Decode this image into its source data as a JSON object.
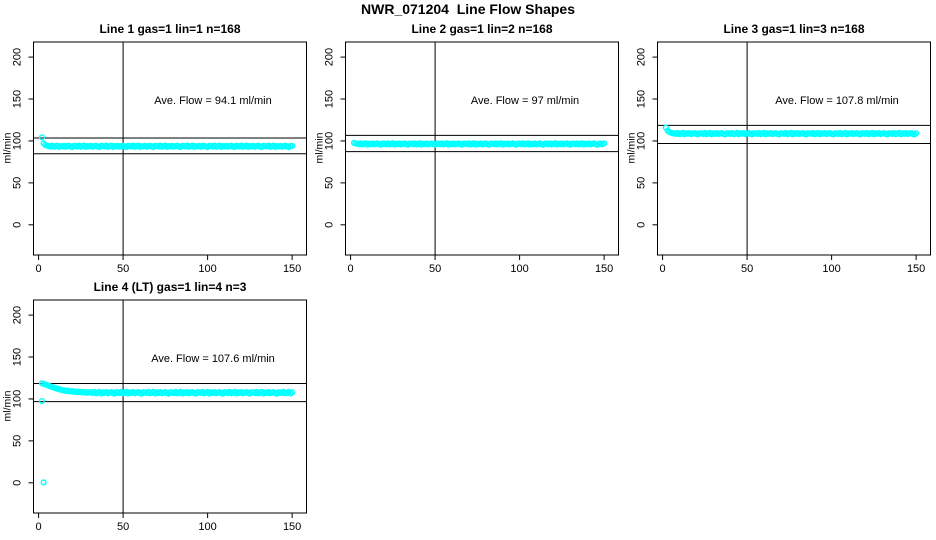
{
  "page_title": "NWR_071204  Line Flow Shapes",
  "colors": {
    "points": "#00FFFF",
    "axis": "#000000",
    "text": "#000000",
    "background": "#FFFFFF"
  },
  "axes": {
    "x_ticks": [
      0,
      50,
      100,
      150
    ],
    "y_ticks": [
      0,
      50,
      100,
      150,
      200
    ],
    "ylabel": "ml/min",
    "xlim": [
      -3,
      158.5
    ],
    "ylim": [
      -36,
      218
    ],
    "grid": false
  },
  "chart_data": [
    {
      "type": "scatter",
      "title": "Line 1 gas=1 lin=1 n=168",
      "line": 1,
      "gas": 1,
      "lin": 1,
      "n": 168,
      "annotation": "Ave. Flow =  94.1  ml/min",
      "ave_flow_ml_min": 94.1,
      "hlines": [
        103.5,
        84.7
      ],
      "vline": 50,
      "x_start": 2,
      "x_step": 1,
      "y": [
        104.3,
        97.0,
        95.2,
        94.3,
        94.0,
        93.3,
        94.4,
        93.0,
        93.7,
        94.5,
        92.8,
        93.9,
        93.4,
        94.2,
        93.1,
        93.8,
        94.3,
        93.2,
        92.7,
        94.1,
        94.0,
        93.3,
        94.4,
        93.0,
        93.7,
        94.5,
        92.8,
        93.9,
        93.4,
        94.2,
        93.1,
        93.8,
        94.3,
        93.2,
        92.7,
        94.1,
        94.0,
        93.3,
        94.4,
        93.0,
        93.7,
        94.5,
        92.8,
        93.9,
        93.4,
        94.2,
        93.1,
        93.8,
        94.3,
        93.2,
        92.7,
        94.1,
        94.0,
        93.3,
        94.4,
        93.0,
        93.7,
        94.5,
        92.8,
        93.9,
        93.4,
        94.2,
        93.1,
        93.8,
        94.3,
        93.2,
        92.7,
        94.1,
        94.0,
        93.3,
        94.4,
        93.0,
        93.7,
        94.5,
        92.8,
        93.9,
        93.4,
        94.2,
        93.1,
        93.8,
        94.3,
        93.2,
        92.7,
        94.1,
        94.0,
        93.3,
        94.4,
        93.0,
        93.7,
        94.5,
        92.8,
        93.9,
        93.4,
        94.2,
        93.1,
        93.8,
        94.3,
        93.2,
        92.7,
        94.1,
        94.0,
        93.3,
        94.4,
        93.0,
        93.7,
        94.5,
        92.8,
        93.9,
        93.4,
        94.2,
        93.1,
        93.8,
        94.3,
        93.2,
        92.7,
        94.1,
        94.0,
        93.3,
        94.4,
        93.0,
        93.7,
        94.5,
        92.8,
        93.9,
        93.4,
        94.2,
        93.1,
        93.8,
        94.3,
        93.2,
        92.7,
        94.1,
        94.0,
        93.3,
        94.4,
        93.0,
        93.7,
        94.5,
        92.8,
        93.9,
        93.4,
        94.2,
        93.1,
        93.8,
        94.3,
        93.2,
        92.7,
        94.1,
        94.0
      ],
      "extra_points": []
    },
    {
      "type": "scatter",
      "title": "Line 2 gas=1 lin=2 n=168",
      "line": 2,
      "gas": 1,
      "lin": 2,
      "n": 168,
      "annotation": "Ave. Flow =  97  ml/min",
      "ave_flow_ml_min": 97,
      "hlines": [
        106.7,
        87.3
      ],
      "vline": 50,
      "x_start": 2,
      "x_step": 1,
      "y": [
        97.8,
        96.9,
        96.8,
        96.1,
        97.2,
        95.8,
        96.5,
        97.3,
        95.6,
        96.7,
        96.2,
        97.0,
        95.9,
        96.6,
        97.1,
        96.0,
        95.5,
        96.9,
        96.8,
        96.1,
        97.2,
        95.8,
        96.5,
        97.3,
        95.6,
        96.7,
        96.2,
        97.0,
        95.9,
        96.6,
        97.1,
        96.0,
        95.5,
        96.9,
        96.8,
        96.1,
        97.2,
        95.8,
        96.5,
        97.3,
        95.6,
        96.7,
        96.2,
        97.0,
        95.9,
        96.6,
        97.1,
        96.0,
        95.5,
        96.9,
        96.8,
        96.1,
        97.2,
        95.8,
        96.5,
        97.3,
        95.6,
        96.7,
        96.2,
        97.0,
        95.9,
        96.6,
        97.1,
        96.0,
        95.5,
        96.9,
        96.8,
        96.1,
        97.2,
        95.8,
        96.5,
        97.3,
        95.6,
        96.7,
        96.2,
        97.0,
        95.9,
        96.6,
        97.1,
        96.0,
        95.5,
        96.9,
        96.8,
        96.1,
        97.2,
        95.8,
        96.5,
        97.3,
        95.6,
        96.7,
        96.2,
        97.0,
        95.9,
        96.6,
        97.1,
        96.0,
        95.5,
        96.9,
        96.8,
        96.1,
        97.2,
        95.8,
        96.5,
        97.3,
        95.6,
        96.7,
        96.2,
        97.0,
        95.9,
        96.6,
        97.1,
        96.0,
        95.5,
        96.9,
        96.8,
        96.1,
        97.2,
        95.8,
        96.5,
        97.3,
        95.6,
        96.7,
        96.2,
        97.0,
        95.9,
        96.6,
        97.1,
        96.0,
        95.5,
        96.9,
        96.8,
        96.1,
        97.2,
        95.8,
        96.5,
        97.3,
        95.6,
        96.7,
        96.2,
        97.0,
        95.9,
        96.6,
        97.1,
        96.0,
        95.5,
        96.9,
        96.8,
        96.1,
        97.2
      ],
      "extra_points": []
    },
    {
      "type": "scatter",
      "title": "Line 3 gas=1 lin=3 n=168",
      "line": 3,
      "gas": 1,
      "lin": 3,
      "n": 168,
      "annotation": "Ave. Flow =  107.8  ml/min",
      "ave_flow_ml_min": 107.8,
      "hlines": [
        118.6,
        97.0
      ],
      "vline": 50,
      "x_start": 2,
      "x_step": 1,
      "y": [
        115.8,
        112.3,
        110.6,
        109.8,
        109.2,
        109.1,
        108.4,
        109.5,
        108.1,
        108.8,
        109.6,
        107.9,
        109.0,
        108.5,
        109.3,
        108.2,
        108.9,
        109.4,
        108.3,
        107.8,
        109.2,
        109.1,
        108.4,
        109.5,
        108.1,
        108.8,
        109.6,
        107.9,
        109.0,
        108.5,
        109.3,
        108.2,
        108.9,
        109.4,
        108.3,
        107.8,
        109.2,
        109.1,
        108.4,
        109.5,
        108.1,
        108.8,
        109.6,
        107.9,
        109.0,
        108.5,
        109.3,
        108.2,
        108.9,
        109.4,
        108.3,
        107.8,
        109.2,
        109.1,
        108.4,
        109.5,
        108.1,
        108.8,
        109.6,
        107.9,
        109.0,
        108.5,
        109.3,
        108.2,
        108.9,
        109.4,
        108.3,
        107.8,
        109.2,
        109.1,
        108.4,
        109.5,
        108.1,
        108.8,
        109.6,
        107.9,
        109.0,
        108.5,
        109.3,
        108.2,
        108.9,
        109.4,
        108.3,
        107.8,
        109.2,
        109.1,
        108.4,
        109.5,
        108.1,
        108.8,
        109.6,
        107.9,
        109.0,
        108.5,
        109.3,
        108.2,
        108.9,
        109.4,
        108.3,
        107.8,
        109.2,
        109.1,
        108.4,
        109.5,
        108.1,
        108.8,
        109.6,
        107.9,
        109.0,
        108.5,
        109.3,
        108.2,
        108.9,
        109.4,
        108.3,
        107.8,
        109.2,
        109.1,
        108.4,
        109.5,
        108.1,
        108.8,
        109.6,
        107.9,
        109.0,
        108.5,
        109.3,
        108.2,
        108.9,
        109.4,
        108.3,
        107.8,
        109.2,
        109.1,
        108.4,
        109.5,
        108.1,
        108.8,
        109.6,
        107.9,
        109.0,
        108.5,
        109.3,
        108.2,
        108.9,
        109.4,
        108.3,
        107.8,
        109.2
      ],
      "extra_points": []
    },
    {
      "type": "scatter",
      "title": "Line 4 (LT) gas=1 lin=4 n=3",
      "line": 4,
      "line_note": "LT",
      "gas": 1,
      "lin": 4,
      "n": 3,
      "annotation": "Ave. Flow =  107.6  ml/min",
      "ave_flow_ml_min": 107.6,
      "hlines": [
        118.4,
        96.8
      ],
      "vline": 50,
      "x_start": 2,
      "x_step": 1,
      "y": [
        118.6,
        118.0,
        117.3,
        116.5,
        115.7,
        114.9,
        114.3,
        113.5,
        112.9,
        112.2,
        111.7,
        111.0,
        110.6,
        110.2,
        109.7,
        109.9,
        109.2,
        108.9,
        109.4,
        108.5,
        108.8,
        108.2,
        108.6,
        107.9,
        108.4,
        107.6,
        108.2,
        107.4,
        108.0,
        107.9,
        107.0,
        108.4,
        106.7,
        107.5,
        108.5,
        106.4,
        107.8,
        107.2,
        108.1,
        106.8,
        107.6,
        108.2,
        106.9,
        106.3,
        108.0,
        107.9,
        107.0,
        108.4,
        106.7,
        107.5,
        108.5,
        106.4,
        107.8,
        107.2,
        108.1,
        106.8,
        107.6,
        108.2,
        106.9,
        106.3,
        108.0,
        107.9,
        107.0,
        108.4,
        106.7,
        107.5,
        108.5,
        106.4,
        107.8,
        107.2,
        108.1,
        106.8,
        107.6,
        108.2,
        106.9,
        106.3,
        108.0,
        107.9,
        107.0,
        108.4,
        106.7,
        107.5,
        108.5,
        106.4,
        107.8,
        107.2,
        108.1,
        106.8,
        107.6,
        108.2,
        106.9,
        106.3,
        108.0,
        107.9,
        107.0,
        108.4,
        106.7,
        107.5,
        108.5,
        106.4,
        107.8,
        107.2,
        108.1,
        106.8,
        107.6,
        108.2,
        106.9,
        106.3,
        108.0,
        107.9,
        107.0,
        108.4,
        106.7,
        107.5,
        108.5,
        106.4,
        107.8,
        107.2,
        108.1,
        106.8,
        107.6,
        108.2,
        106.9,
        106.3,
        108.0,
        107.9,
        107.0,
        108.4,
        106.7,
        107.5,
        108.5,
        106.4,
        107.8,
        107.2,
        108.1,
        106.8,
        107.6,
        108.2,
        106.9,
        106.3,
        108.0,
        107.9,
        107.0,
        108.4,
        106.7,
        107.5,
        108.5,
        106.4,
        107.8
      ],
      "extra_points": [
        [
          2,
          97.5
        ],
        [
          3,
          0.5
        ]
      ]
    }
  ]
}
